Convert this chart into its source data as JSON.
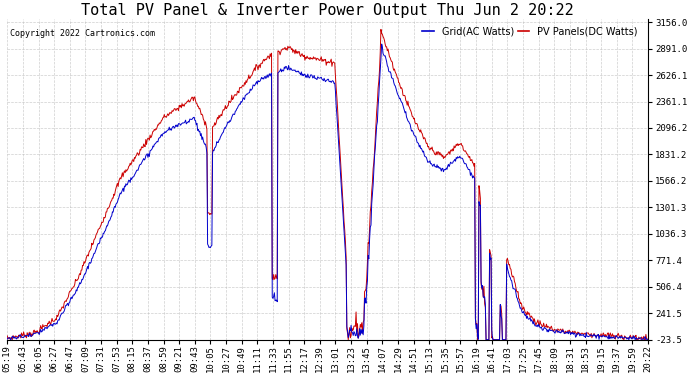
{
  "title": "Total PV Panel & Inverter Power Output Thu Jun 2 20:22",
  "copyright": "Copyright 2022 Cartronics.com",
  "legend_ac": "Grid(AC Watts)",
  "legend_dc": "PV Panels(DC Watts)",
  "color_ac": "#0000cc",
  "color_dc": "#cc0000",
  "yticks": [
    3156.0,
    2891.0,
    2626.1,
    2361.1,
    2096.2,
    1831.2,
    1566.2,
    1301.3,
    1036.3,
    771.4,
    506.4,
    241.5,
    -23.5
  ],
  "ylim": [
    -23.5,
    3156.0
  ],
  "bg_color": "#ffffff",
  "grid_color": "#bbbbbb",
  "title_fontsize": 11,
  "label_fontsize": 7,
  "tick_fontsize": 6.5,
  "xtick_labels": [
    "05:19",
    "05:43",
    "06:05",
    "06:27",
    "06:47",
    "07:09",
    "07:31",
    "07:53",
    "08:15",
    "08:37",
    "08:59",
    "09:21",
    "09:43",
    "10:05",
    "10:27",
    "10:49",
    "11:11",
    "11:33",
    "11:55",
    "12:17",
    "12:39",
    "13:01",
    "13:23",
    "13:45",
    "14:07",
    "14:29",
    "14:51",
    "15:13",
    "15:35",
    "15:57",
    "16:19",
    "16:41",
    "17:03",
    "17:25",
    "17:45",
    "18:09",
    "18:31",
    "18:53",
    "19:15",
    "19:37",
    "19:59",
    "20:22"
  ]
}
